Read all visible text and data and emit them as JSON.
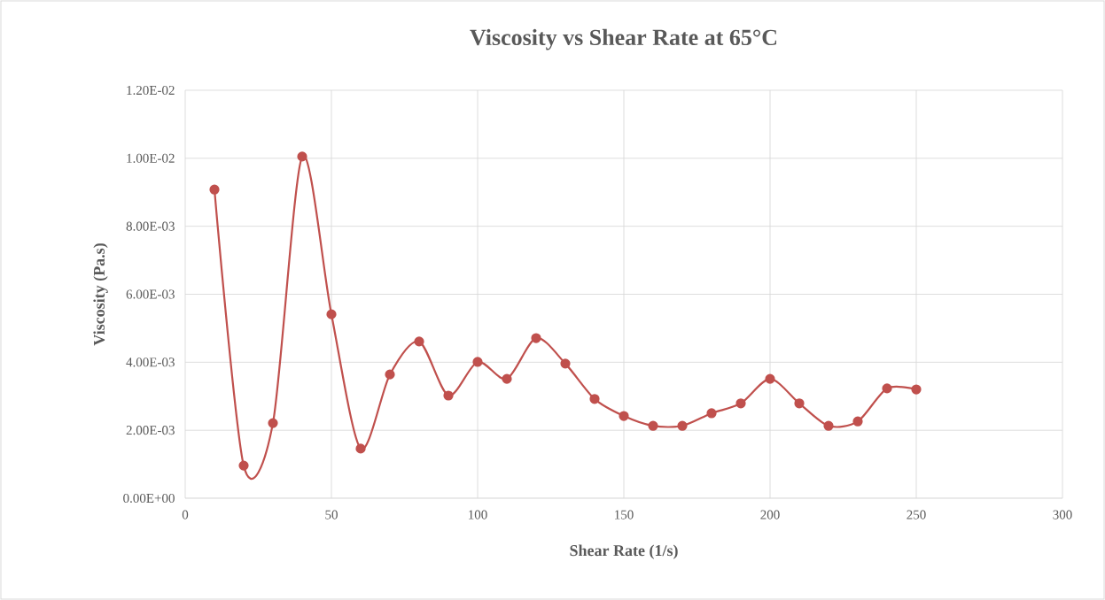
{
  "chart_data": {
    "type": "line",
    "title": "Viscosity vs Shear Rate at 65°C",
    "xlabel": "Shear Rate (1/s)",
    "ylabel": "Viscosity (Pa.s)",
    "x": [
      10,
      20,
      30,
      40,
      50,
      60,
      70,
      80,
      90,
      100,
      110,
      120,
      130,
      140,
      150,
      160,
      170,
      180,
      190,
      200,
      210,
      220,
      230,
      240,
      250
    ],
    "series": [
      {
        "color": "#c0504d",
        "values": [
          0.00908,
          0.00096,
          0.00221,
          0.01005,
          0.00541,
          0.00146,
          0.00364,
          0.00461,
          0.00302,
          0.00401,
          0.00351,
          0.00471,
          0.00396,
          0.00292,
          0.00242,
          0.00213,
          0.00213,
          0.0025,
          0.00279,
          0.00351,
          0.00279,
          0.00213,
          0.00226,
          0.00323,
          0.0032
        ]
      }
    ],
    "xlim": [
      0,
      300
    ],
    "xticks": [
      0,
      50,
      100,
      150,
      200,
      250,
      300
    ],
    "ylim": [
      0,
      0.012
    ],
    "yticks": [
      {
        "value": 0,
        "label": "0.00E+00"
      },
      {
        "value": 0.002,
        "label": "2.00E-03"
      },
      {
        "value": 0.004,
        "label": "4.00E-03"
      },
      {
        "value": 0.006,
        "label": "6.00E-03"
      },
      {
        "value": 0.008,
        "label": "8.00E-03"
      },
      {
        "value": 0.01,
        "label": "1.00E-02"
      },
      {
        "value": 0.012,
        "label": "1.20E-02"
      }
    ],
    "grid": true,
    "marker": "circle",
    "line_style": "solid"
  }
}
